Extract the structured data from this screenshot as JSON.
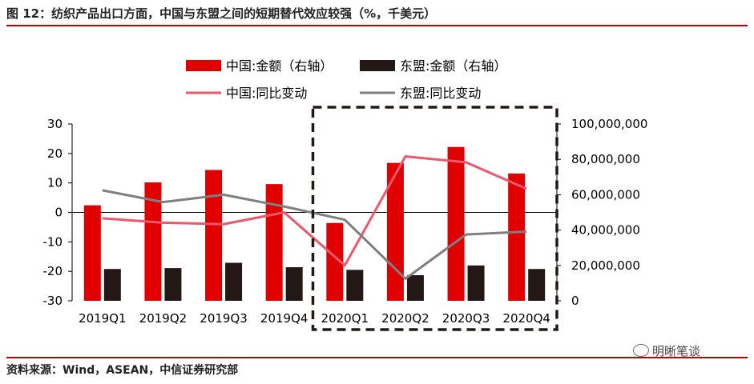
{
  "title": "图 12：纺织产品出口方面，中国与东盟之间的短期替代效应较强（%，千美元）",
  "source": "资料来源：Wind，ASEAN，中信证券研究部",
  "watermark": "明晰笔谈",
  "colors": {
    "china_bar": "#e00000",
    "asean_bar": "#231815",
    "china_line": "#f0566a",
    "asean_line": "#7f7f7f",
    "rule": "#c00000"
  },
  "chart_data": {
    "type": "bar",
    "categories": [
      "2019Q1",
      "2019Q2",
      "2019Q3",
      "2019Q4",
      "2020Q1",
      "2020Q2",
      "2020Q3",
      "2020Q4"
    ],
    "series": [
      {
        "name": "中国:金额（右轴）",
        "kind": "bar",
        "axis": "right",
        "values": [
          54000000,
          67000000,
          74000000,
          66000000,
          44000000,
          78000000,
          87000000,
          72000000
        ]
      },
      {
        "name": "东盟:金额（右轴）",
        "kind": "bar",
        "axis": "right",
        "values": [
          18000000,
          18500000,
          21500000,
          19000000,
          17500000,
          14500000,
          20000000,
          18000000
        ]
      },
      {
        "name": "中国:同比变动",
        "kind": "line",
        "axis": "left",
        "values": [
          -2,
          -3.5,
          -4,
          0,
          -18,
          19,
          17,
          8
        ]
      },
      {
        "name": "东盟:同比变动",
        "kind": "line",
        "axis": "left",
        "values": [
          7.5,
          3.5,
          6,
          2,
          -2.5,
          -22.5,
          -7.5,
          -6.5
        ]
      }
    ],
    "y_left": {
      "min": -30,
      "max": 30,
      "ticks": [
        "30",
        "20",
        "10",
        "0",
        "-10",
        "-20",
        "-30"
      ]
    },
    "y_right": {
      "min": 0,
      "max": 100000000,
      "ticks": [
        "100,000,000",
        "80,000,000",
        "60,000,000",
        "40,000,000",
        "20,000,000",
        "0"
      ]
    },
    "legend_position": "top",
    "highlight_box": {
      "from_category": "2020Q1",
      "to_category": "2020Q4",
      "style": "dashed"
    },
    "grid": false
  }
}
